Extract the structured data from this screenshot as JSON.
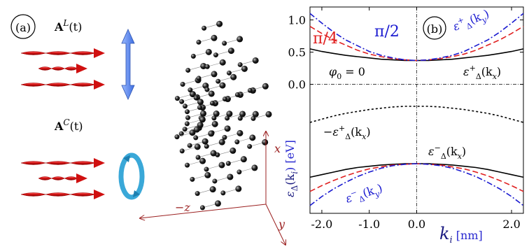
{
  "panel_a": {
    "label": "(a)",
    "linear_field": [
      {
        "text": "A",
        "weight": "bold"
      },
      {
        "text": "L",
        "script": "sup"
      },
      {
        "text": "(t)"
      }
    ],
    "circular_field": [
      {
        "text": "A",
        "weight": "bold"
      },
      {
        "text": "C",
        "script": "sup"
      },
      {
        "text": "(t)"
      }
    ],
    "axes": {
      "x": "x",
      "z": "−z",
      "y": "y"
    }
  },
  "chart_data": {
    "type": "line",
    "panel_label": "(b)",
    "x": [
      -2.25,
      -2,
      -1.75,
      -1.5,
      -1.25,
      -1,
      -0.75,
      -0.5,
      -0.25,
      0,
      0.25,
      0.5,
      0.75,
      1,
      1.25,
      1.5,
      1.75,
      2,
      2.25
    ],
    "xlim": [
      -2.25,
      2.25
    ],
    "xticks": [
      {
        "value": -2,
        "label": "-2.0"
      },
      {
        "value": -1,
        "label": "-1.0"
      },
      {
        "value": 0,
        "label": "0.0"
      },
      {
        "value": 2,
        "label": "2.0"
      }
    ],
    "ylim": [
      -2.0,
      1.2
    ],
    "yticks": [
      {
        "value": 0,
        "label": "0.0"
      },
      0.5,
      {
        "value": 1,
        "label": "1.0"
      }
    ],
    "zero_lines": true,
    "xlabel": [
      {
        "text": "k",
        "size": "large"
      },
      {
        "text": "i",
        "script": "sub"
      },
      {
        "text": " [nm]",
        "color": "#2a2ad0"
      }
    ],
    "ylabel": [
      {
        "text": "ε"
      },
      {
        "text": "Δ",
        "script": "sub"
      },
      {
        "text": "(k"
      },
      {
        "text": "i",
        "script": "sub"
      },
      {
        "text": ") [eV]",
        "color": "#2a2ad0"
      }
    ],
    "series": [
      {
        "color": "#000000",
        "dash": "solid",
        "values": [
          0.55,
          0.51,
          0.48,
          0.45,
          0.43,
          0.41,
          0.39,
          0.38,
          0.37,
          0.37,
          0.37,
          0.38,
          0.39,
          0.41,
          0.43,
          0.45,
          0.48,
          0.51,
          0.55
        ]
      },
      {
        "color": "#e02020",
        "dash": "dashed",
        "values": [
          0.9,
          0.79,
          0.69,
          0.61,
          0.53,
          0.47,
          0.43,
          0.4,
          0.38,
          0.37,
          0.38,
          0.4,
          0.43,
          0.47,
          0.53,
          0.61,
          0.69,
          0.79,
          0.9
        ]
      },
      {
        "color": "#1a1ad0",
        "dash": "dashdot",
        "values": [
          1.1,
          0.95,
          0.81,
          0.69,
          0.6,
          0.51,
          0.45,
          0.41,
          0.38,
          0.37,
          0.38,
          0.41,
          0.45,
          0.51,
          0.6,
          0.69,
          0.81,
          0.95,
          1.1
        ]
      },
      {
        "color": "#000000",
        "dash": "dotted",
        "values": [
          -0.59,
          -0.54,
          -0.49,
          -0.45,
          -0.42,
          -0.39,
          -0.37,
          -0.35,
          -0.34,
          -0.34,
          -0.34,
          -0.35,
          -0.37,
          -0.39,
          -0.42,
          -0.45,
          -0.49,
          -0.54,
          -0.59
        ]
      },
      {
        "color": "#000000",
        "dash": "solid",
        "values": [
          -1.44,
          -1.4,
          -1.36,
          -1.32,
          -1.29,
          -1.27,
          -1.25,
          -1.24,
          -1.23,
          -1.23,
          -1.23,
          -1.24,
          -1.25,
          -1.27,
          -1.29,
          -1.32,
          -1.36,
          -1.4,
          -1.44
        ]
      },
      {
        "color": "#e02020",
        "dash": "dashed",
        "values": [
          -1.66,
          -1.57,
          -1.49,
          -1.42,
          -1.36,
          -1.31,
          -1.28,
          -1.25,
          -1.24,
          -1.23,
          -1.24,
          -1.25,
          -1.28,
          -1.31,
          -1.36,
          -1.42,
          -1.49,
          -1.57,
          -1.66
        ]
      },
      {
        "color": "#1a1ad0",
        "dash": "dashdot",
        "values": [
          -1.88,
          -1.74,
          -1.62,
          -1.52,
          -1.43,
          -1.36,
          -1.3,
          -1.26,
          -1.24,
          -1.23,
          -1.24,
          -1.26,
          -1.3,
          -1.36,
          -1.43,
          -1.52,
          -1.62,
          -1.74,
          -1.88
        ]
      }
    ],
    "annotations": [
      {
        "color": "#e02020",
        "segments": [
          {
            "text": "π/4",
            "size": "large"
          }
        ]
      },
      {
        "color": "#1a1ad0",
        "segments": [
          {
            "text": "π/2",
            "size": "large"
          }
        ]
      },
      {
        "color": "#000000",
        "segments": [
          {
            "text": "φ"
          },
          {
            "text": "0",
            "script": "sub"
          },
          {
            "text": " = 0"
          }
        ]
      },
      {
        "color": "#1a1ad0",
        "segments": [
          {
            "text": "ε"
          },
          {
            "text": "+",
            "script": "sup"
          },
          {
            "text": "Δ",
            "script": "sub"
          },
          {
            "text": "(k"
          },
          {
            "text": "y",
            "script": "sub"
          },
          {
            "text": ")"
          }
        ]
      },
      {
        "color": "#000000",
        "segments": [
          {
            "text": "ε"
          },
          {
            "text": "+",
            "script": "sup"
          },
          {
            "text": "Δ",
            "script": "sub"
          },
          {
            "text": "(k"
          },
          {
            "text": "x",
            "script": "sub"
          },
          {
            "text": ")"
          }
        ]
      },
      {
        "color": "#000000",
        "segments": [
          {
            "text": "−ε"
          },
          {
            "text": "+",
            "script": "sup"
          },
          {
            "text": "Δ",
            "script": "sub"
          },
          {
            "text": "(k"
          },
          {
            "text": "x",
            "script": "sub"
          },
          {
            "text": ")"
          }
        ]
      },
      {
        "color": "#000000",
        "segments": [
          {
            "text": "ε"
          },
          {
            "text": "−",
            "script": "sup"
          },
          {
            "text": "Δ",
            "script": "sub"
          },
          {
            "text": "(k"
          },
          {
            "text": "x",
            "script": "sub"
          },
          {
            "text": ")"
          }
        ]
      },
      {
        "color": "#1a1ad0",
        "segments": [
          {
            "text": "ε"
          },
          {
            "text": "−",
            "script": "sup"
          },
          {
            "text": "Δ",
            "script": "sub"
          },
          {
            "text": "(k"
          },
          {
            "text": "y",
            "script": "sub"
          },
          {
            "text": ")"
          }
        ]
      }
    ]
  }
}
